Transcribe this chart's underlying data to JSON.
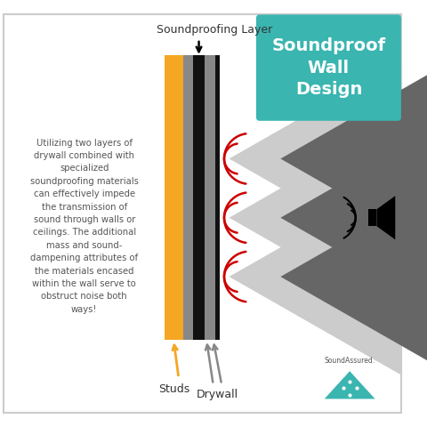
{
  "title": "Soundproof\nWall\nDesign",
  "title_bg": "#3ab5b0",
  "title_color": "#ffffff",
  "body_text": "Utilizing two layers of\ndrywall combined with\nspecialized\nsoundproofing materials\ncan effectively impede\nthe transmission of\nsound through walls or\nceilings. The additional\nmass and sound-\ndampening attributes of\nthe materials encased\nwithin the wall serve to\nobstruct noise both\nways!",
  "body_text_color": "#555555",
  "bg_color": "#ffffff",
  "border_color": "#cccccc",
  "layer_gold_color": "#f5a623",
  "layer_gray_color": "#888888",
  "layer_black_color": "#111111",
  "arrow_light": "#cccccc",
  "arrow_dark": "#666666",
  "sound_wave_color": "#cc0000",
  "label_soundproofing": "Soundproofing Layer",
  "label_studs": "Studs",
  "label_drywall": "Drywall",
  "label_color": "#333333",
  "logo_text": "SoundAssured.",
  "logo_color": "#555555",
  "logo_teal": "#3ab5b0"
}
